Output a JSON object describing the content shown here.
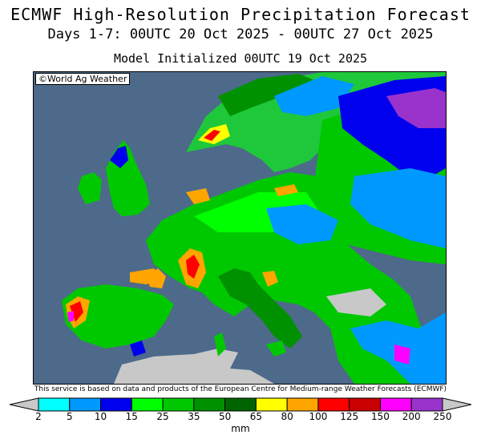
{
  "title": "ECMWF High-Resolution Precipitation Forecast",
  "subtitle": "Days 1-7: 00UTC 20 Oct 2025 - 00UTC 27 Oct 2025",
  "init_line": "Model Initialized 00UTC 19 Oct 2025",
  "credit": "©World Ag Weather",
  "disclaimer": "This service is based on data and products of the European Centre for Medium-range Weather Forecasts (ECMWF)",
  "unit": "mm",
  "colors": {
    "sea": "#4d6a8a",
    "dry_land": "#c8c8c8",
    "low": "#00e0e0"
  },
  "legend": {
    "ticks": [
      "2",
      "5",
      "10",
      "15",
      "25",
      "35",
      "50",
      "65",
      "80",
      "100",
      "125",
      "150",
      "200",
      "250"
    ],
    "colors": [
      "#00ffff",
      "#0099ff",
      "#0000ee",
      "#00ff00",
      "#00c800",
      "#009100",
      "#006400",
      "#ffff00",
      "#ffa500",
      "#ff0000",
      "#c80000",
      "#ff00ff",
      "#9933cc"
    ]
  }
}
